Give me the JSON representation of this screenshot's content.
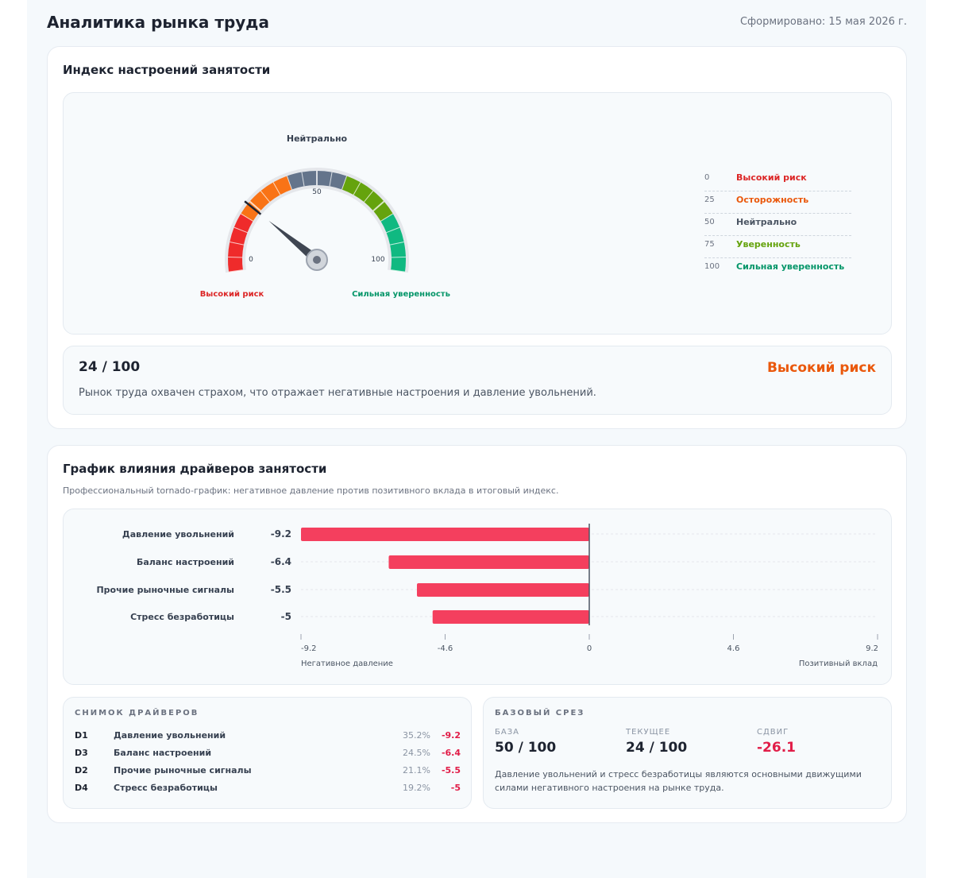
{
  "header": {
    "title": "Аналитика рынка труда",
    "generated": "Сформировано: 15 мая 2026 г."
  },
  "sentiment": {
    "title": "Индекс настроений занятости",
    "gauge": {
      "top_label": "Нейтрально",
      "tick_min": "0",
      "tick_mid": "50",
      "tick_max": "100",
      "left_caption": "Высокий риск",
      "right_caption": "Сильная уверенность",
      "value": 24
    },
    "legend": [
      {
        "num": "0",
        "label": "Высокий риск",
        "color": "#dc2626"
      },
      {
        "num": "25",
        "label": "Осторожность",
        "color": "#ea580c"
      },
      {
        "num": "50",
        "label": "Нейтрально",
        "color": "#4b5563"
      },
      {
        "num": "75",
        "label": "Уверенность",
        "color": "#65a30d"
      },
      {
        "num": "100",
        "label": "Сильная уверенность",
        "color": "#059669"
      }
    ],
    "score": {
      "value": "24 / 100",
      "status": "Высокий риск",
      "description": "Рынок труда охвачен страхом, что отражает негативные настроения и давление увольнений."
    }
  },
  "drivers": {
    "title": "График влияния драйверов занятости",
    "subtitle": "Профессиональный tornado-график: негативное давление против позитивного вклада в итоговый индекс.",
    "snapshot": {
      "caption": "СНИМОК ДРАЙВЕРОВ",
      "rows": [
        {
          "id": "D1",
          "name": "Давление увольнений",
          "share": "35.2%",
          "value": "-9.2"
        },
        {
          "id": "D3",
          "name": "Баланс настроений",
          "share": "24.5%",
          "value": "-6.4"
        },
        {
          "id": "D2",
          "name": "Прочие рыночные сигналы",
          "share": "21.1%",
          "value": "-5.5"
        },
        {
          "id": "D4",
          "name": "Стресс безработицы",
          "share": "19.2%",
          "value": "-5"
        }
      ]
    },
    "base": {
      "caption": "БАЗОВЫЙ СРЕЗ",
      "base_label": "БАЗА",
      "base_value": "50 / 100",
      "current_label": "ТЕКУЩЕЕ",
      "current_value": "24 / 100",
      "shift_label": "СДВИГ",
      "shift_value": "-26.1",
      "note": "Давление увольнений и стресс безработицы являются основными движущими силами негативного настроения на рынке труда."
    }
  },
  "chart_data": {
    "type": "bar",
    "orientation": "horizontal",
    "categories": [
      "Давление увольнений",
      "Баланс настроений",
      "Прочие рыночные сигналы",
      "Стресс безработицы"
    ],
    "values": [
      -9.2,
      -6.4,
      -5.5,
      -5
    ],
    "value_labels": [
      "-9.2",
      "-6.4",
      "-5.5",
      "-5"
    ],
    "xlim": [
      -9.2,
      9.2
    ],
    "ticks": [
      "-9.2",
      "-4.6",
      "0",
      "4.6",
      "9.2"
    ],
    "tick_values": [
      -9.2,
      -4.6,
      0,
      4.6,
      9.2
    ],
    "left_axis_label": "Негативное давление",
    "right_axis_label": "Позитивный вклад",
    "bar_color": "#f43f5e",
    "grid": true
  }
}
